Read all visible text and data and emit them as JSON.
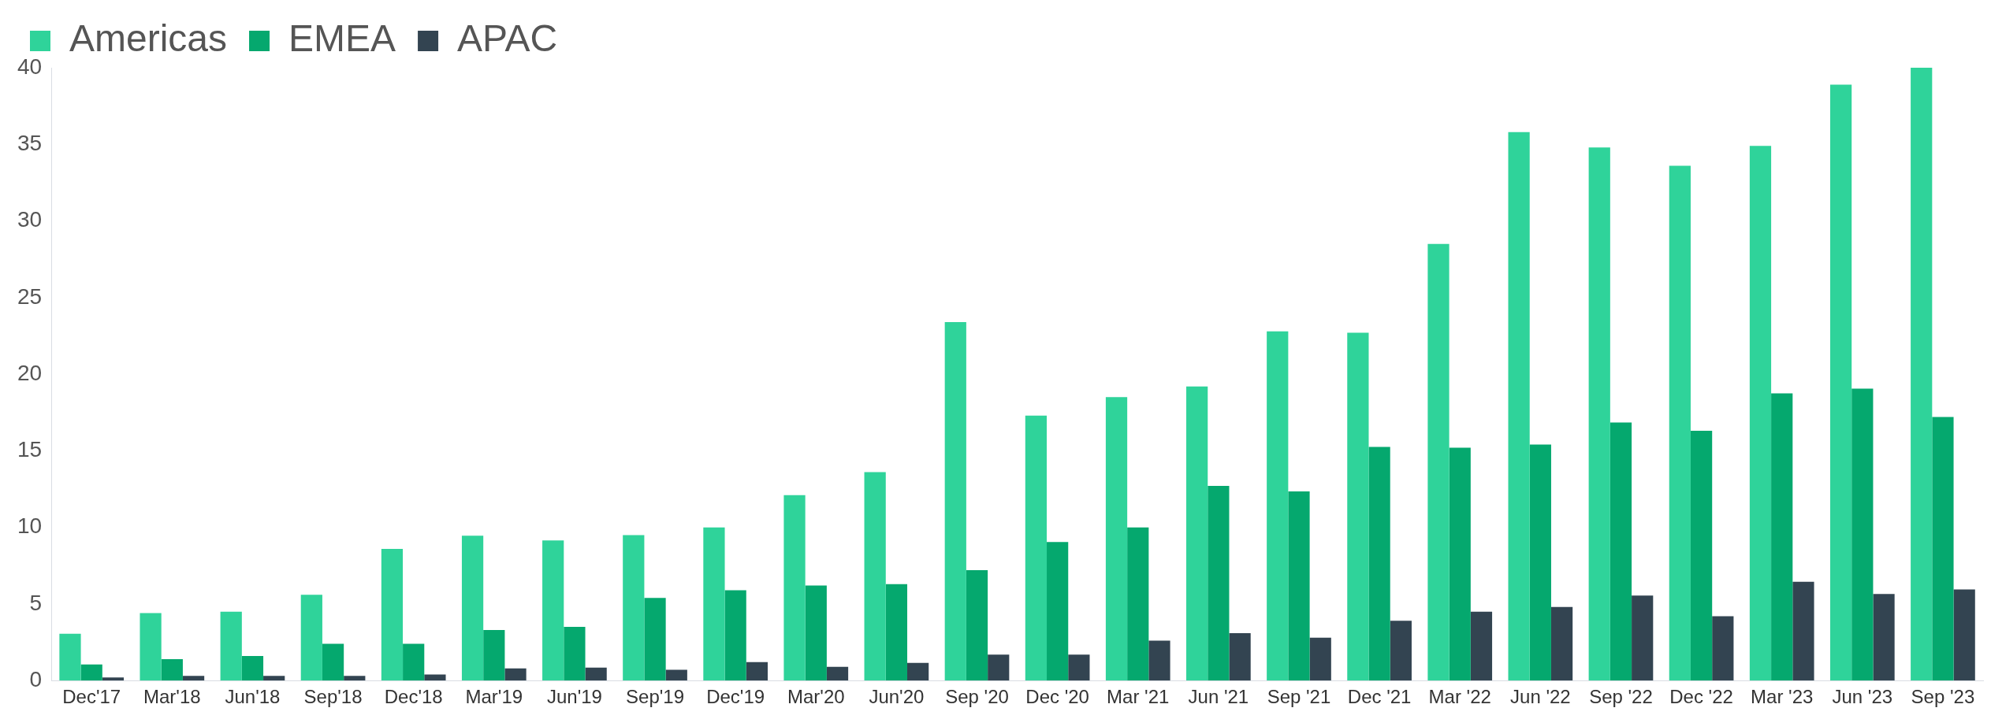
{
  "chart_data": {
    "type": "bar",
    "categories": [
      "Dec'17",
      "Mar'18",
      "Jun'18",
      "Sep'18",
      "Dec'18",
      "Mar'19",
      "Jun'19",
      "Sep'19",
      "Dec'19",
      "Mar'20",
      "Jun'20",
      "Sep '20",
      "Dec '20",
      "Mar '21",
      "Jun '21",
      "Sep '21",
      "Dec '21",
      "Mar '22",
      "Jun '22",
      "Sep '22",
      "Dec '22",
      "Mar '23",
      "Jun '23",
      "Sep '23"
    ],
    "series": [
      {
        "name": "Americas",
        "color": "#2fd39a",
        "values": [
          3.05,
          4.4,
          4.5,
          5.6,
          8.6,
          9.45,
          9.15,
          9.5,
          10,
          12.1,
          13.6,
          23.4,
          17.3,
          18.5,
          19.2,
          22.8,
          22.7,
          28.5,
          35.8,
          34.8,
          33.6,
          34.9,
          38.9,
          40
        ]
      },
      {
        "name": "EMEA",
        "color": "#05a86e",
        "values": [
          1.05,
          1.4,
          1.6,
          2.4,
          2.4,
          3.3,
          3.5,
          5.4,
          5.9,
          6.2,
          6.3,
          7.2,
          9.05,
          10,
          12.7,
          12.35,
          15.25,
          15.2,
          15.4,
          16.85,
          16.3,
          18.75,
          19.05,
          17.2
        ]
      },
      {
        "name": "APAC",
        "color": "#334451",
        "values": [
          0.2,
          0.3,
          0.3,
          0.3,
          0.4,
          0.8,
          0.85,
          0.7,
          1.2,
          0.9,
          1.15,
          1.7,
          1.7,
          2.6,
          3.1,
          2.8,
          3.9,
          4.5,
          4.8,
          5.55,
          4.2,
          6.45,
          5.65,
          5.95
        ]
      }
    ],
    "ylim": [
      0,
      40
    ],
    "yticks": [
      0,
      5,
      10,
      15,
      20,
      25,
      30,
      35,
      40
    ],
    "grid": false,
    "legend": "top left"
  }
}
